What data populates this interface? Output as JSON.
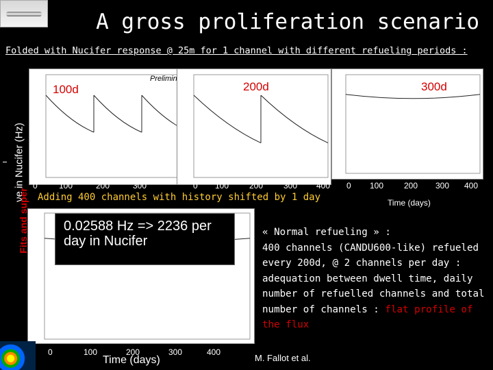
{
  "slide": {
    "title": "A gross proliferation scenario",
    "subtitle": "Folded with Nucifer response @ 25m for 1 channel with different refueling periods :",
    "ylabel": "νe in Nucifer (Hz)",
    "ylabel_red": "Fits and super",
    "banner": "Adding 400 channels with history shifted by 1 day",
    "box_text": "0.02588 Hz => 2236 per day in Nucifer",
    "footer": "M. Fallot et al.",
    "bottom_time": "Time (days)"
  },
  "panels": [
    {
      "tag": "100d",
      "extra": "Preliminary",
      "ticks": [
        "0",
        "100",
        "200",
        "300"
      ]
    },
    {
      "tag": "200d",
      "ticks": [
        "0",
        "100",
        "200",
        "300",
        "400"
      ]
    },
    {
      "tag": "300d",
      "ticks": [
        "0",
        "100",
        "200",
        "300",
        "400"
      ],
      "xlabel": "Time (days)"
    }
  ],
  "lower_ticks": [
    "0",
    "100",
    "200",
    "300",
    "400"
  ],
  "right_text": {
    "line1": "« Normal refueling » :",
    "line2": "400 channels (CANDU600-like) refueled every 200d, @ 2 channels per day : adequation between dwell time, daily number of refuelled channels and total number of channels : ",
    "line2_red": "flat profile of the flux"
  },
  "chart_data": [
    {
      "type": "line",
      "title": "100d",
      "x": [
        0,
        100,
        100,
        200,
        200,
        300
      ],
      "y": [
        1.0,
        0.55,
        1.0,
        0.55,
        1.0,
        0.55
      ],
      "xlim": [
        0,
        300
      ]
    },
    {
      "type": "line",
      "title": "200d",
      "x": [
        0,
        200,
        200,
        400
      ],
      "y": [
        1.0,
        0.42,
        1.0,
        0.42
      ],
      "xlim": [
        0,
        400
      ]
    },
    {
      "type": "line",
      "title": "300d",
      "x": [
        0,
        400
      ],
      "y": [
        0.02588,
        0.02588
      ],
      "xlim": [
        0,
        400
      ]
    },
    {
      "type": "line",
      "x": [
        0,
        400
      ],
      "y": [
        0.02588,
        0.02588
      ],
      "xlim": [
        0,
        400
      ]
    }
  ]
}
